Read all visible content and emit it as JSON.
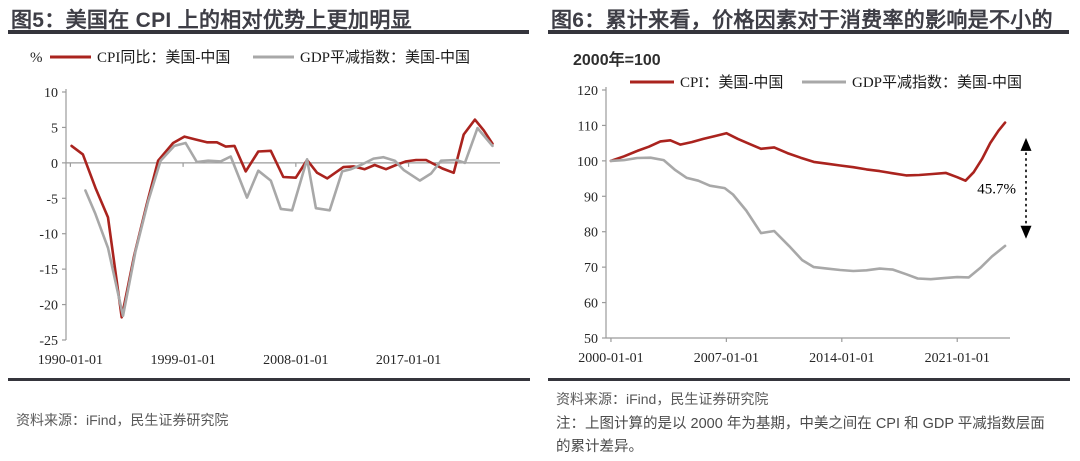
{
  "colors": {
    "cpi_red": "#aa231e",
    "deflator_gray": "#a8a8a8",
    "title_text": "#3e3e46",
    "rule": "#35353c",
    "axis": "#9b9b9b",
    "tick_text": "#262626",
    "source_text": "#595959",
    "annotation": "#000000",
    "background": "#ffffff"
  },
  "figures": [
    {
      "title": "图5：美国在 CPI 上的相对优势上更加明显",
      "source": "资料来源：iFind，民生证券研究院"
    },
    {
      "title": "图6：累计来看，价格因素对于消费率的影响是不小的",
      "subtitle": "2000年=100",
      "source": "资料来源：iFind，民生证券研究院",
      "note": "注：上图计算的是以 2000 年为基期，中美之间在 CPI 和 GDP 平减指数层面的累计差异。"
    }
  ],
  "chart_data": [
    {
      "type": "line",
      "title": "图5：美国在 CPI 上的相对优势上更加明显",
      "unit_label": "%",
      "xlabel": "",
      "ylabel": "%",
      "ylim": [
        -25,
        10
      ],
      "yticks": [
        10,
        5,
        0,
        -5,
        -10,
        -15,
        -20,
        -25
      ],
      "xlim": [
        1989.65,
        2024.3
      ],
      "xticks": [
        1990,
        1999,
        2008,
        2017
      ],
      "xtick_labels": [
        "1990-01-01",
        "1999-01-01",
        "2008-01-01",
        "2017-01-01"
      ],
      "x_axis_position": "zero",
      "grid": false,
      "legend_position": "top",
      "series": [
        {
          "key": "cpi",
          "name": "CPI同比：美国-中国",
          "color": "#aa231e",
          "points": [
            [
              1990.1,
              2.4
            ],
            [
              1991.0,
              1.2
            ],
            [
              1992.0,
              -3.5
            ],
            [
              1993.0,
              -7.7
            ],
            [
              1994.1,
              -21.8
            ],
            [
              1995.1,
              -13.0
            ],
            [
              1996.1,
              -5.8
            ],
            [
              1997.0,
              0.3
            ],
            [
              1998.2,
              2.8
            ],
            [
              1999.1,
              3.7
            ],
            [
              2000.0,
              3.3
            ],
            [
              2000.9,
              2.9
            ],
            [
              2001.7,
              2.9
            ],
            [
              2002.4,
              2.3
            ],
            [
              2003.1,
              2.4
            ],
            [
              2004.0,
              -1.2
            ],
            [
              2005.0,
              1.6
            ],
            [
              2006.0,
              1.7
            ],
            [
              2007.0,
              -2.0
            ],
            [
              2008.0,
              -2.1
            ],
            [
              2008.9,
              0.4
            ],
            [
              2009.7,
              -1.4
            ],
            [
              2010.5,
              -2.2
            ],
            [
              2011.8,
              -0.6
            ],
            [
              2012.6,
              -0.5
            ],
            [
              2013.5,
              -0.9
            ],
            [
              2014.3,
              -0.3
            ],
            [
              2015.2,
              -0.9
            ],
            [
              2016.0,
              -0.3
            ],
            [
              2016.8,
              0.2
            ],
            [
              2017.6,
              0.4
            ],
            [
              2018.4,
              0.4
            ],
            [
              2019.7,
              -0.8
            ],
            [
              2020.6,
              -1.4
            ],
            [
              2021.4,
              4.0
            ],
            [
              2022.3,
              6.1
            ],
            [
              2023.0,
              4.6
            ],
            [
              2023.7,
              2.7
            ]
          ]
        },
        {
          "key": "gdp_deflator",
          "name": "GDP平减指数：美国-中国",
          "color": "#a8a8a8",
          "points": [
            [
              1991.2,
              -3.9
            ],
            [
              1992.0,
              -7.2
            ],
            [
              1993.0,
              -12.0
            ],
            [
              1994.2,
              -21.6
            ],
            [
              1995.2,
              -12.5
            ],
            [
              1996.2,
              -5.5
            ],
            [
              1997.2,
              0.3
            ],
            [
              1998.3,
              2.4
            ],
            [
              1999.2,
              2.8
            ],
            [
              2000.1,
              0.1
            ],
            [
              2001.0,
              0.3
            ],
            [
              2002.0,
              0.2
            ],
            [
              2002.8,
              0.9
            ],
            [
              2004.1,
              -4.9
            ],
            [
              2005.0,
              -1.1
            ],
            [
              2006.0,
              -2.5
            ],
            [
              2006.8,
              -6.5
            ],
            [
              2007.7,
              -6.7
            ],
            [
              2008.9,
              0.5
            ],
            [
              2009.6,
              -6.4
            ],
            [
              2010.7,
              -6.7
            ],
            [
              2011.7,
              -1.2
            ],
            [
              2012.4,
              -0.9
            ],
            [
              2013.2,
              -0.3
            ],
            [
              2014.2,
              0.6
            ],
            [
              2015.0,
              0.8
            ],
            [
              2015.9,
              0.3
            ],
            [
              2016.6,
              -1.0
            ],
            [
              2017.9,
              -2.5
            ],
            [
              2018.8,
              -1.5
            ],
            [
              2019.6,
              0.3
            ],
            [
              2020.8,
              0.4
            ],
            [
              2021.5,
              0.0
            ],
            [
              2022.5,
              4.9
            ],
            [
              2023.7,
              2.4
            ]
          ]
        }
      ]
    },
    {
      "type": "line",
      "title": "图6：累计来看，价格因素对于消费率的影响是不小的",
      "subtitle": "2000年=100",
      "xlabel": "",
      "ylabel": "2000年=100",
      "ylim": [
        50,
        120
      ],
      "yticks": [
        120,
        110,
        100,
        90,
        80,
        70,
        60,
        50
      ],
      "xlim": [
        1999.7,
        2024.2
      ],
      "xticks": [
        2000,
        2007,
        2014,
        2021
      ],
      "xtick_labels": [
        "2000-01-01",
        "2007-01-01",
        "2014-01-01",
        "2021-01-01"
      ],
      "x_axis_position": "bottom",
      "grid": false,
      "legend_position": "top",
      "annotation": {
        "label": "45.7%",
        "style": "double-headed-dashed-arrow",
        "y_top": 106.5,
        "y_bottom": 78.0
      },
      "series": [
        {
          "key": "cpi",
          "name": "CPI：美国-中国",
          "color": "#aa231e",
          "points": [
            [
              2000.0,
              100.0
            ],
            [
              2000.8,
              101.3
            ],
            [
              2001.6,
              102.8
            ],
            [
              2002.3,
              104.0
            ],
            [
              2003.0,
              105.5
            ],
            [
              2003.6,
              105.8
            ],
            [
              2004.2,
              104.6
            ],
            [
              2004.9,
              105.3
            ],
            [
              2005.6,
              106.2
            ],
            [
              2006.3,
              107.0
            ],
            [
              2007.0,
              107.8
            ],
            [
              2007.7,
              106.2
            ],
            [
              2008.4,
              104.8
            ],
            [
              2009.1,
              103.4
            ],
            [
              2009.9,
              103.8
            ],
            [
              2010.7,
              102.2
            ],
            [
              2011.5,
              100.9
            ],
            [
              2012.3,
              99.7
            ],
            [
              2013.1,
              99.2
            ],
            [
              2013.9,
              98.7
            ],
            [
              2014.7,
              98.2
            ],
            [
              2015.5,
              97.6
            ],
            [
              2016.3,
              97.1
            ],
            [
              2017.1,
              96.5
            ],
            [
              2017.9,
              95.9
            ],
            [
              2018.7,
              96.0
            ],
            [
              2019.5,
              96.3
            ],
            [
              2020.3,
              96.6
            ],
            [
              2021.0,
              95.4
            ],
            [
              2021.5,
              94.4
            ],
            [
              2022.0,
              96.8
            ],
            [
              2022.5,
              100.5
            ],
            [
              2023.0,
              105.0
            ],
            [
              2023.5,
              108.5
            ],
            [
              2023.9,
              110.8
            ]
          ]
        },
        {
          "key": "gdp_deflator",
          "name": "GDP平减指数：美国-中国",
          "color": "#a8a8a8",
          "points": [
            [
              2000.0,
              100.0
            ],
            [
              2000.8,
              100.2
            ],
            [
              2001.6,
              100.8
            ],
            [
              2002.4,
              100.9
            ],
            [
              2003.2,
              100.2
            ],
            [
              2003.9,
              97.4
            ],
            [
              2004.6,
              95.2
            ],
            [
              2005.3,
              94.4
            ],
            [
              2006.0,
              93.0
            ],
            [
              2006.9,
              92.3
            ],
            [
              2007.4,
              90.5
            ],
            [
              2008.2,
              86.0
            ],
            [
              2009.1,
              79.6
            ],
            [
              2009.9,
              80.2
            ],
            [
              2010.8,
              76.0
            ],
            [
              2011.6,
              72.0
            ],
            [
              2012.3,
              70.0
            ],
            [
              2013.1,
              69.6
            ],
            [
              2013.9,
              69.2
            ],
            [
              2014.7,
              68.9
            ],
            [
              2015.5,
              69.1
            ],
            [
              2016.3,
              69.6
            ],
            [
              2017.1,
              69.3
            ],
            [
              2017.9,
              68.0
            ],
            [
              2018.6,
              66.8
            ],
            [
              2019.4,
              66.6
            ],
            [
              2020.2,
              66.9
            ],
            [
              2021.0,
              67.2
            ],
            [
              2021.7,
              67.1
            ],
            [
              2022.4,
              69.8
            ],
            [
              2023.1,
              73.0
            ],
            [
              2023.9,
              76.0
            ]
          ]
        }
      ]
    }
  ]
}
